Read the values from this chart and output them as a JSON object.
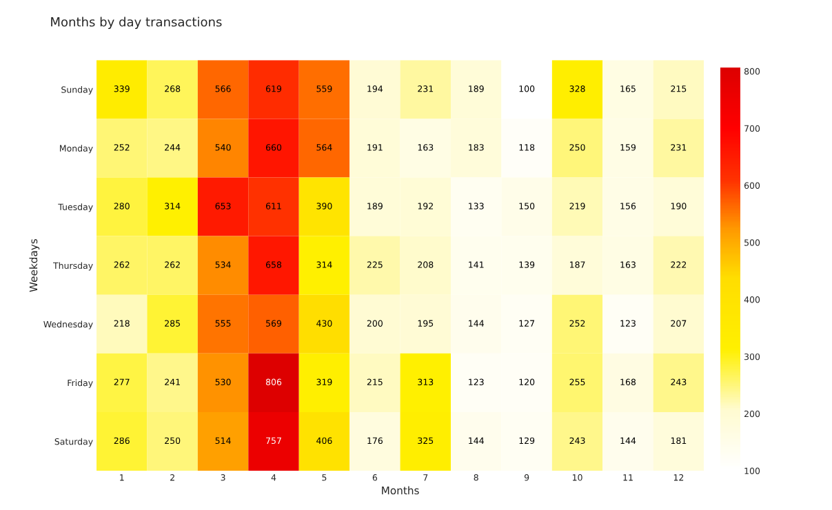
{
  "chart_data": {
    "type": "heatmap",
    "title": "Months by day transactions",
    "xlabel": "Months",
    "ylabel": "Weekdays",
    "categories": [
      "1",
      "2",
      "3",
      "4",
      "5",
      "6",
      "7",
      "8",
      "9",
      "10",
      "11",
      "12"
    ],
    "y_categories": [
      "Sunday",
      "Monday",
      "Tuesday",
      "Thursday",
      "Wednesday",
      "Friday",
      "Saturday"
    ],
    "cells": [
      [
        339,
        268,
        566,
        619,
        559,
        194,
        231,
        189,
        100,
        328,
        165,
        215
      ],
      [
        252,
        244,
        540,
        660,
        564,
        191,
        163,
        183,
        118,
        250,
        159,
        231
      ],
      [
        280,
        314,
        653,
        611,
        390,
        189,
        192,
        133,
        150,
        219,
        156,
        190
      ],
      [
        262,
        262,
        534,
        658,
        314,
        225,
        208,
        141,
        139,
        187,
        163,
        222
      ],
      [
        218,
        285,
        555,
        569,
        430,
        200,
        195,
        144,
        127,
        252,
        123,
        207
      ],
      [
        277,
        241,
        530,
        806,
        319,
        215,
        313,
        123,
        120,
        255,
        168,
        243
      ],
      [
        286,
        250,
        514,
        757,
        406,
        176,
        325,
        144,
        129,
        243,
        144,
        181
      ]
    ],
    "clim": [
      100,
      806
    ],
    "cticks": [
      100,
      200,
      300,
      400,
      500,
      600,
      700,
      800
    ],
    "data_labels": true,
    "grid": false
  }
}
